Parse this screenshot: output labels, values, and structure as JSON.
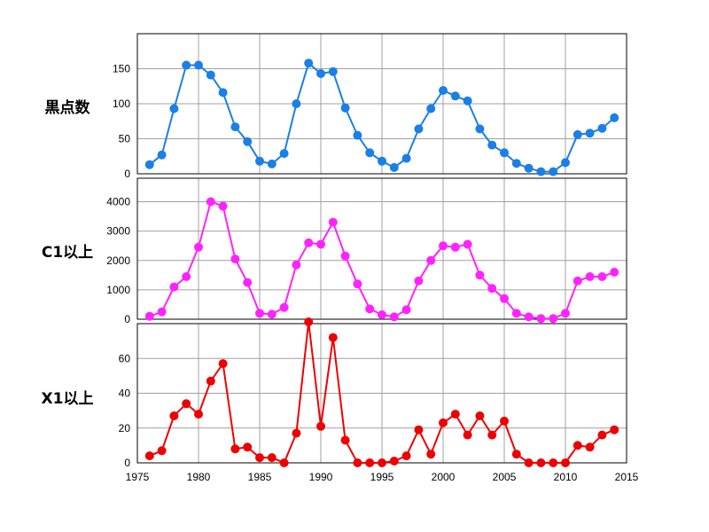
{
  "chart_data": [
    {
      "type": "line",
      "ylabel": "黒点数",
      "color": "#1a7fe6",
      "ylim": [
        0,
        200
      ],
      "yticks": [
        0,
        50,
        100,
        150
      ],
      "xlim": [
        1975,
        2015
      ],
      "x": [
        1976,
        1977,
        1978,
        1979,
        1980,
        1981,
        1982,
        1983,
        1984,
        1985,
        1986,
        1987,
        1988,
        1989,
        1990,
        1991,
        1992,
        1993,
        1994,
        1995,
        1996,
        1997,
        1998,
        1999,
        2000,
        2001,
        2002,
        2003,
        2004,
        2005,
        2006,
        2007,
        2008,
        2009,
        2010,
        2011,
        2012,
        2013,
        2014
      ],
      "values": [
        13,
        27,
        93,
        155,
        155,
        141,
        116,
        67,
        46,
        18,
        14,
        29,
        100,
        158,
        143,
        146,
        94,
        55,
        30,
        18,
        9,
        22,
        64,
        93,
        119,
        111,
        104,
        64,
        41,
        30,
        15,
        8,
        3,
        3,
        16,
        56,
        58,
        65,
        80
      ]
    },
    {
      "type": "line",
      "ylabel": "C1以上",
      "color": "#ff22ff",
      "ylim": [
        0,
        4800
      ],
      "yticks": [
        0,
        1000,
        2000,
        3000,
        4000
      ],
      "xlim": [
        1975,
        2015
      ],
      "x": [
        1976,
        1977,
        1978,
        1979,
        1980,
        1981,
        1982,
        1983,
        1984,
        1985,
        1986,
        1987,
        1988,
        1989,
        1990,
        1991,
        1992,
        1993,
        1994,
        1995,
        1996,
        1997,
        1998,
        1999,
        2000,
        2001,
        2002,
        2003,
        2004,
        2005,
        2006,
        2007,
        2008,
        2009,
        2010,
        2011,
        2012,
        2013,
        2014
      ],
      "values": [
        100,
        250,
        1100,
        1450,
        2450,
        4000,
        3850,
        2050,
        1250,
        200,
        170,
        400,
        1850,
        2600,
        2550,
        3300,
        2150,
        1200,
        350,
        150,
        80,
        320,
        1300,
        2000,
        2500,
        2450,
        2550,
        1500,
        1050,
        700,
        200,
        80,
        20,
        20,
        200,
        1300,
        1450,
        1450,
        1600
      ]
    },
    {
      "type": "line",
      "ylabel": "X1以上",
      "color": "#ee0000",
      "ylim": [
        0,
        80
      ],
      "yticks": [
        0,
        20,
        40,
        60
      ],
      "xlim": [
        1975,
        2015
      ],
      "xticks": [
        1975,
        1980,
        1985,
        1990,
        1995,
        2000,
        2005,
        2010,
        2015
      ],
      "x": [
        1976,
        1977,
        1978,
        1979,
        1980,
        1981,
        1982,
        1983,
        1984,
        1985,
        1986,
        1987,
        1988,
        1989,
        1990,
        1991,
        1992,
        1993,
        1994,
        1995,
        1996,
        1997,
        1998,
        1999,
        2000,
        2001,
        2002,
        2003,
        2004,
        2005,
        2006,
        2007,
        2008,
        2009,
        2010,
        2011,
        2012,
        2013,
        2014
      ],
      "values": [
        4,
        7,
        27,
        34,
        28,
        47,
        57,
        8,
        9,
        3,
        3,
        0,
        17,
        81,
        21,
        72,
        13,
        0,
        0,
        0,
        1,
        4,
        19,
        5,
        23,
        28,
        16,
        27,
        16,
        24,
        5,
        0,
        0,
        0,
        0,
        10,
        9,
        16,
        19
      ]
    }
  ]
}
